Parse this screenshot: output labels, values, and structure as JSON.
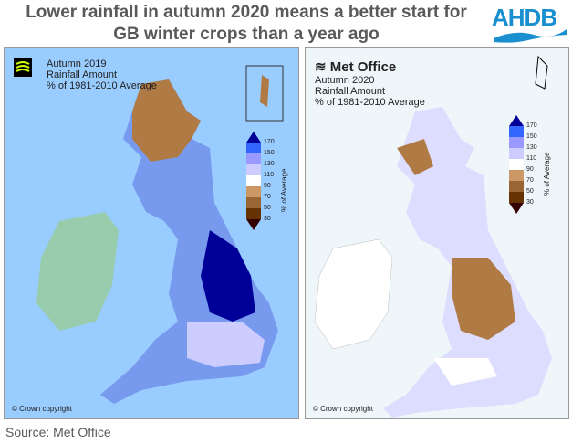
{
  "title": {
    "line1": "Lower rainfall in autumn 2020 means a better start for",
    "line2": "GB winter crops than a year ago"
  },
  "logo": {
    "text": "AHDB"
  },
  "colorbar": {
    "ticks": [
      "170",
      "150",
      "130",
      "110",
      "90",
      "70",
      "50",
      "30"
    ],
    "axis_label": "% of Average",
    "colors": [
      "#000099",
      "#3366ff",
      "#9999ff",
      "#ccccff",
      "#ffffff",
      "#cc9966",
      "#996633",
      "#663300",
      "#330000"
    ]
  },
  "left_map": {
    "brand": "Met Office",
    "title": "Autumn 2019",
    "subtitle": "Rainfall Amount",
    "period": "% of 1981-2010 Average",
    "copyright": "© Crown copyright",
    "background": "#99ccff"
  },
  "right_map": {
    "brand": "Met Office",
    "title": "Autumn 2020",
    "subtitle": "Rainfall Amount",
    "period": "% of 1981-2010 Average",
    "copyright": "© Crown copyright",
    "background": "#eef6fa"
  },
  "source": "Source: Met Office"
}
